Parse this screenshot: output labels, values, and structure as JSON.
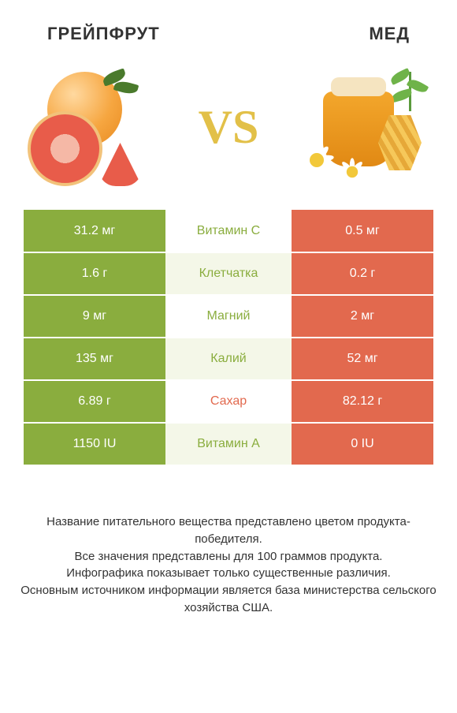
{
  "header": {
    "left_title": "ГРЕЙПФРУТ",
    "right_title": "МЕД"
  },
  "vs_label": "VS",
  "colors": {
    "grapefruit": "#8aad3e",
    "honey": "#e2694e",
    "mid_bg_light": "#f4f7e8",
    "mid_text_win_left": "#8aad3e",
    "mid_text_win_right": "#e2694e",
    "right_text": "#ffffff",
    "title_text": "#333333",
    "vs_text": "#e2c048"
  },
  "rows": [
    {
      "label": "Витамин C",
      "left": "31.2 мг",
      "right": "0.5 мг",
      "winner": "left"
    },
    {
      "label": "Клетчатка",
      "left": "1.6 г",
      "right": "0.2 г",
      "winner": "left"
    },
    {
      "label": "Магний",
      "left": "9 мг",
      "right": "2 мг",
      "winner": "left"
    },
    {
      "label": "Калий",
      "left": "135 мг",
      "right": "52 мг",
      "winner": "left"
    },
    {
      "label": "Сахар",
      "left": "6.89 г",
      "right": "82.12 г",
      "winner": "right"
    },
    {
      "label": "Витамин A",
      "left": "1150 IU",
      "right": "0 IU",
      "winner": "left"
    }
  ],
  "footer": {
    "line1": "Название питательного вещества представлено цветом продукта-победителя.",
    "line2": "Все значения представлены для 100 граммов продукта.",
    "line3": "Инфографика показывает только существенные различия.",
    "line4": "Основным источником информации является база министерства сельского хозяйства США."
  }
}
